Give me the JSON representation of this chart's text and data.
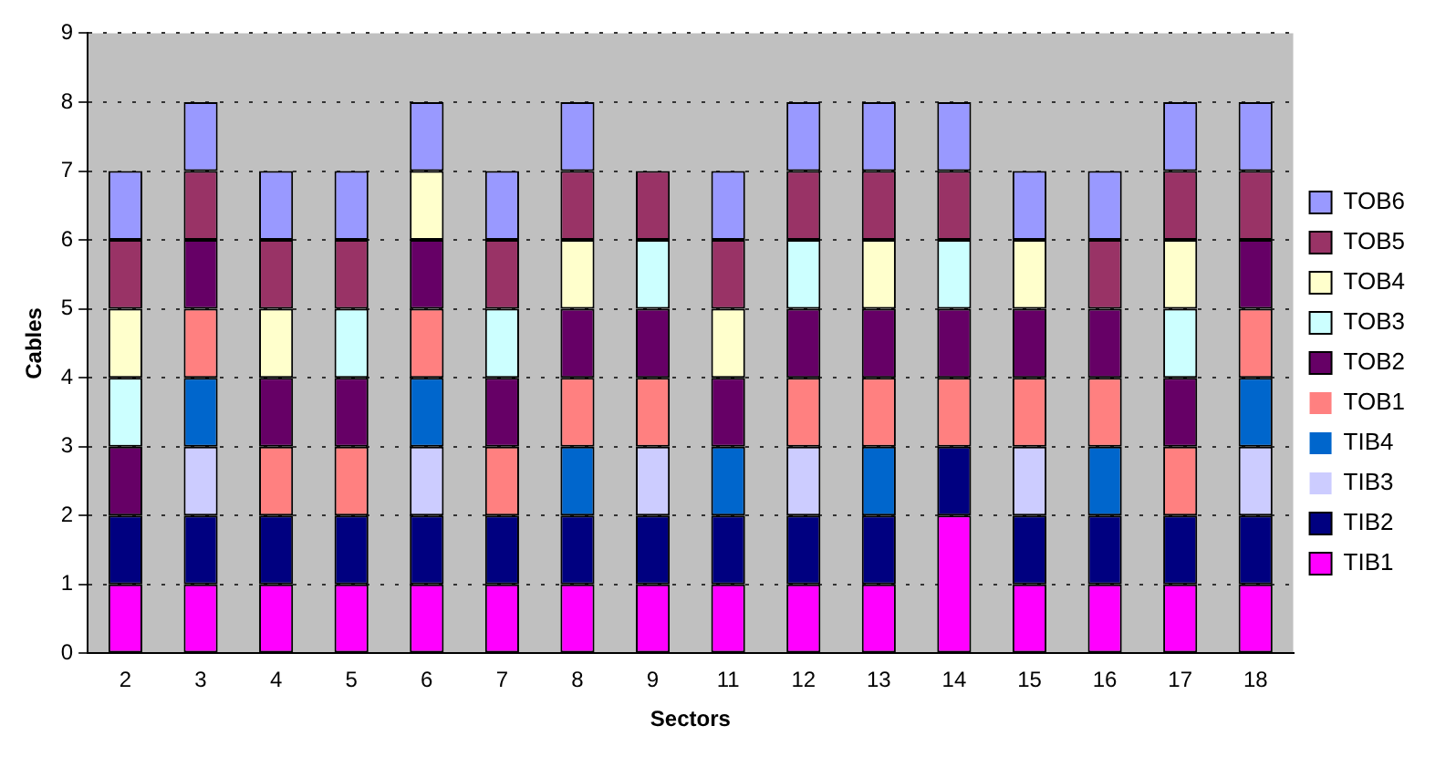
{
  "chart_data": {
    "type": "bar",
    "stacked": true,
    "xlabel": "Sectors",
    "ylabel": "Cables",
    "categories": [
      "2",
      "3",
      "4",
      "5",
      "6",
      "7",
      "8",
      "9",
      "11",
      "12",
      "13",
      "14",
      "15",
      "16",
      "17",
      "18"
    ],
    "ylim": [
      0,
      9
    ],
    "yticks": [
      0,
      1,
      2,
      3,
      4,
      5,
      6,
      7,
      8,
      9
    ],
    "grid": "y",
    "legend": "right",
    "series": [
      {
        "name": "TIB1",
        "color": "#ff00ff",
        "values": [
          1,
          1,
          1,
          1,
          1,
          1,
          1,
          1,
          1,
          1,
          1,
          2,
          1,
          1,
          1,
          1
        ]
      },
      {
        "name": "TIB2",
        "color": "#000080",
        "values": [
          1,
          1,
          1,
          1,
          1,
          1,
          1,
          1,
          1,
          1,
          1,
          1,
          1,
          1,
          1,
          1
        ]
      },
      {
        "name": "TIB3",
        "color": "#ccccff",
        "values": [
          0,
          1,
          0,
          0,
          1,
          0,
          0,
          1,
          0,
          1,
          0,
          0,
          1,
          0,
          0,
          1
        ]
      },
      {
        "name": "TIB4",
        "color": "#0066cc",
        "values": [
          0,
          1,
          0,
          0,
          1,
          0,
          1,
          0,
          1,
          0,
          1,
          0,
          0,
          1,
          0,
          1
        ]
      },
      {
        "name": "TOB1",
        "color": "#ff8080",
        "values": [
          0,
          1,
          1,
          1,
          1,
          1,
          1,
          1,
          0,
          1,
          1,
          1,
          1,
          1,
          1,
          1
        ]
      },
      {
        "name": "TOB2",
        "color": "#660066",
        "values": [
          1,
          1,
          1,
          1,
          1,
          1,
          1,
          1,
          1,
          1,
          1,
          1,
          1,
          1,
          1,
          1
        ]
      },
      {
        "name": "TOB3",
        "color": "#ccffff",
        "values": [
          1,
          0,
          0,
          1,
          0,
          1,
          0,
          1,
          0,
          1,
          0,
          1,
          0,
          0,
          1,
          0
        ]
      },
      {
        "name": "TOB4",
        "color": "#ffffcc",
        "values": [
          1,
          0,
          1,
          0,
          1,
          0,
          1,
          0,
          1,
          0,
          1,
          0,
          1,
          0,
          1,
          0
        ]
      },
      {
        "name": "TOB5",
        "color": "#993366",
        "values": [
          1,
          1,
          1,
          1,
          0,
          1,
          1,
          1,
          1,
          1,
          1,
          1,
          0,
          1,
          1,
          1
        ]
      },
      {
        "name": "TOB6",
        "color": "#9999ff",
        "values": [
          1,
          1,
          1,
          1,
          1,
          1,
          1,
          0,
          1,
          1,
          1,
          1,
          1,
          1,
          1,
          1
        ]
      }
    ]
  }
}
